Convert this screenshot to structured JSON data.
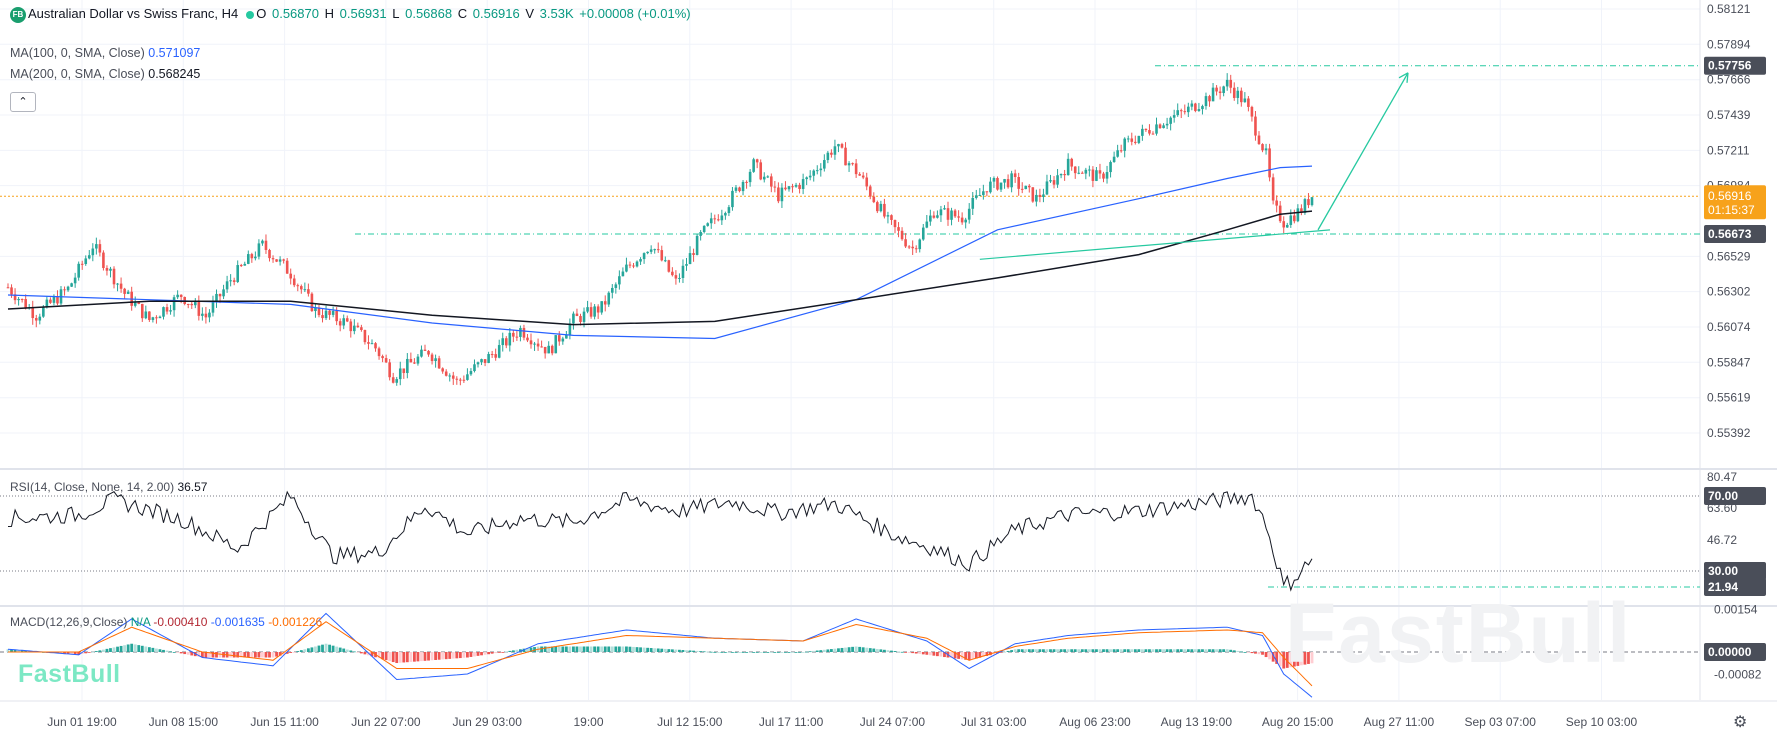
{
  "header": {
    "badge": "FB",
    "symbol_title": "Australian Dollar vs Swiss Franc, H4",
    "open_label": "O",
    "open": "0.56870",
    "high_label": "H",
    "high": "0.56931",
    "low_label": "L",
    "low": "0.56868",
    "close_label": "C",
    "close": "0.56916",
    "volume_label": "V",
    "volume": "3.53K",
    "change": "+0.00008 (+0.01%)",
    "ma100_label": "MA(100, 0, SMA, Close)",
    "ma100_value": "0.571097",
    "ma200_label": "MA(200, 0, SMA, Close)",
    "ma200_value": "0.568245",
    "collapse_glyph": "⌃"
  },
  "colors": {
    "up": "#089981",
    "up_candle": "#26a69a",
    "down": "#ef5350",
    "ma100": "#2962ff",
    "ma200": "#131722",
    "annotation": "#26c9a0",
    "current_price": "#f7a21b",
    "label_dark": "#4a4e59",
    "macd_line": "#2962ff",
    "signal_line": "#ff6d00"
  },
  "price_axis": {
    "ticks": [
      "0.58121",
      "0.57894",
      "0.57666",
      "0.57439",
      "0.57211",
      "0.56984",
      "0.56529",
      "0.56302",
      "0.56074",
      "0.55847",
      "0.55619",
      "0.55392"
    ],
    "tag_high": "0.57756",
    "tag_current": "0.56916",
    "tag_countdown": "01:15:37",
    "tag_support": "0.56673"
  },
  "rsi": {
    "label": "RSI(14, Close, None, 14, 2.00)",
    "value": "36.57",
    "ticks": [
      "80.47",
      "63.60",
      "46.72"
    ],
    "tag_70": "70.00",
    "tag_30": "30.00",
    "tag_low": "21.94"
  },
  "macd": {
    "label": "MACD(12,26,9,Close)",
    "na": "N/A",
    "hist": "-0.000410",
    "macd": "-0.001635",
    "signal": "-0.001226",
    "ticks": [
      "0.00154",
      "-0.00082"
    ],
    "tag_zero": "0.00000"
  },
  "time_axis": {
    "labels": [
      "Jun 01 19:00",
      "Jun 08 15:00",
      "Jun 15 11:00",
      "Jun 22 07:00",
      "Jun 29 03:00",
      "19:00",
      "Jul 12 15:00",
      "Jul 17 11:00",
      "Jul 24 07:00",
      "Jul 31 03:00",
      "Aug 06 23:00",
      "Aug 13 19:00",
      "Aug 20 15:00",
      "Aug 27 11:00",
      "Sep 03 07:00",
      "Sep 10 03:00"
    ]
  },
  "watermark": {
    "small": "FastBull",
    "large": "FastBull"
  },
  "chart_data": {
    "type": "candlestick",
    "title": "Australian Dollar vs Swiss Franc, H4",
    "ylim": [
      0.5525,
      0.5822
    ],
    "ma100_end": 0.571097,
    "ma200_end": 0.568245,
    "last_close": 0.56916,
    "key_levels": {
      "high": 0.57756,
      "support": 0.56673
    },
    "close_path": [
      [
        0,
        0.5633
      ],
      [
        8,
        0.5615
      ],
      [
        17,
        0.5632
      ],
      [
        24,
        0.566
      ],
      [
        33,
        0.5629
      ],
      [
        40,
        0.5612
      ],
      [
        49,
        0.5628
      ],
      [
        56,
        0.5614
      ],
      [
        63,
        0.5638
      ],
      [
        72,
        0.566
      ],
      [
        80,
        0.5642
      ],
      [
        87,
        0.5618
      ],
      [
        96,
        0.561
      ],
      [
        104,
        0.5594
      ],
      [
        109,
        0.5576
      ],
      [
        119,
        0.5592
      ],
      [
        127,
        0.5572
      ],
      [
        136,
        0.5588
      ],
      [
        145,
        0.5606
      ],
      [
        153,
        0.5592
      ],
      [
        160,
        0.5612
      ],
      [
        168,
        0.562
      ],
      [
        175,
        0.5645
      ],
      [
        182,
        0.5661
      ],
      [
        189,
        0.5636
      ],
      [
        196,
        0.5666
      ],
      [
        204,
        0.5688
      ],
      [
        211,
        0.5712
      ],
      [
        218,
        0.5692
      ],
      [
        226,
        0.5702
      ],
      [
        234,
        0.5724
      ],
      [
        241,
        0.5705
      ],
      [
        249,
        0.5675
      ],
      [
        256,
        0.5658
      ],
      [
        262,
        0.5682
      ],
      [
        270,
        0.5678
      ],
      [
        277,
        0.5698
      ],
      [
        284,
        0.5702
      ],
      [
        291,
        0.569
      ],
      [
        300,
        0.5712
      ],
      [
        309,
        0.5703
      ],
      [
        316,
        0.5725
      ],
      [
        326,
        0.5739
      ],
      [
        333,
        0.5746
      ],
      [
        340,
        0.5756
      ],
      [
        345,
        0.5764
      ],
      [
        350,
        0.5752
      ],
      [
        356,
        0.5718
      ],
      [
        358,
        0.5685
      ],
      [
        361,
        0.5675
      ],
      [
        366,
        0.5683
      ],
      [
        369,
        0.5692
      ]
    ],
    "ma100_path": [
      [
        0,
        0.5628
      ],
      [
        40,
        0.5625
      ],
      [
        80,
        0.5622
      ],
      [
        120,
        0.561
      ],
      [
        160,
        0.5602
      ],
      [
        200,
        0.56
      ],
      [
        240,
        0.5625
      ],
      [
        280,
        0.567
      ],
      [
        320,
        0.569
      ],
      [
        345,
        0.5703
      ],
      [
        360,
        0.571
      ],
      [
        369,
        0.5711
      ]
    ],
    "ma200_path": [
      [
        0,
        0.5619
      ],
      [
        40,
        0.5624
      ],
      [
        80,
        0.5624
      ],
      [
        120,
        0.5615
      ],
      [
        160,
        0.5609
      ],
      [
        200,
        0.5611
      ],
      [
        240,
        0.5625
      ],
      [
        280,
        0.5639
      ],
      [
        320,
        0.5654
      ],
      [
        345,
        0.567
      ],
      [
        360,
        0.568
      ],
      [
        369,
        0.5682
      ]
    ],
    "trendline": [
      [
        275,
        0.5651
      ],
      [
        369,
        0.5668
      ]
    ],
    "projection_arrow": [
      [
        369,
        0.5668
      ],
      [
        390,
        0.5771
      ]
    ],
    "rsi_path": [
      [
        0,
        58
      ],
      [
        20,
        60
      ],
      [
        30,
        68
      ],
      [
        50,
        57
      ],
      [
        65,
        42
      ],
      [
        80,
        70
      ],
      [
        92,
        38
      ],
      [
        105,
        40
      ],
      [
        118,
        65
      ],
      [
        130,
        50
      ],
      [
        145,
        58
      ],
      [
        160,
        56
      ],
      [
        175,
        68
      ],
      [
        190,
        62
      ],
      [
        205,
        67
      ],
      [
        218,
        61
      ],
      [
        234,
        66
      ],
      [
        250,
        50
      ],
      [
        262,
        42
      ],
      [
        272,
        34
      ],
      [
        285,
        52
      ],
      [
        300,
        60
      ],
      [
        320,
        62
      ],
      [
        340,
        67
      ],
      [
        352,
        70
      ],
      [
        356,
        55
      ],
      [
        361,
        22
      ],
      [
        366,
        30
      ],
      [
        369,
        37
      ]
    ],
    "macd_path": [
      [
        0,
        0.0001
      ],
      [
        20,
        -0.0001
      ],
      [
        35,
        0.0012
      ],
      [
        55,
        -0.0002
      ],
      [
        75,
        -0.0005
      ],
      [
        90,
        0.0014
      ],
      [
        110,
        -0.001
      ],
      [
        130,
        -0.0008
      ],
      [
        150,
        0.0003
      ],
      [
        175,
        0.0008
      ],
      [
        200,
        0.0005
      ],
      [
        225,
        0.0004
      ],
      [
        240,
        0.0012
      ],
      [
        260,
        0.0004
      ],
      [
        272,
        -0.0006
      ],
      [
        285,
        0.0003
      ],
      [
        300,
        0.0006
      ],
      [
        320,
        0.0008
      ],
      [
        345,
        0.0009
      ],
      [
        355,
        0.0006
      ],
      [
        361,
        -0.0008
      ],
      [
        369,
        -0.00164
      ]
    ],
    "signal_path": [
      [
        0,
        0.0
      ],
      [
        20,
        0.0
      ],
      [
        35,
        0.0009
      ],
      [
        55,
        0.0
      ],
      [
        75,
        -0.0003
      ],
      [
        90,
        0.0011
      ],
      [
        110,
        -0.0006
      ],
      [
        130,
        -0.0006
      ],
      [
        150,
        0.0001
      ],
      [
        175,
        0.0006
      ],
      [
        200,
        0.0005
      ],
      [
        225,
        0.0004
      ],
      [
        240,
        0.001
      ],
      [
        260,
        0.0005
      ],
      [
        272,
        -0.0003
      ],
      [
        285,
        0.0002
      ],
      [
        300,
        0.0005
      ],
      [
        320,
        0.0007
      ],
      [
        345,
        0.0008
      ],
      [
        355,
        0.0007
      ],
      [
        361,
        -0.0002
      ],
      [
        369,
        -0.00123
      ]
    ]
  }
}
